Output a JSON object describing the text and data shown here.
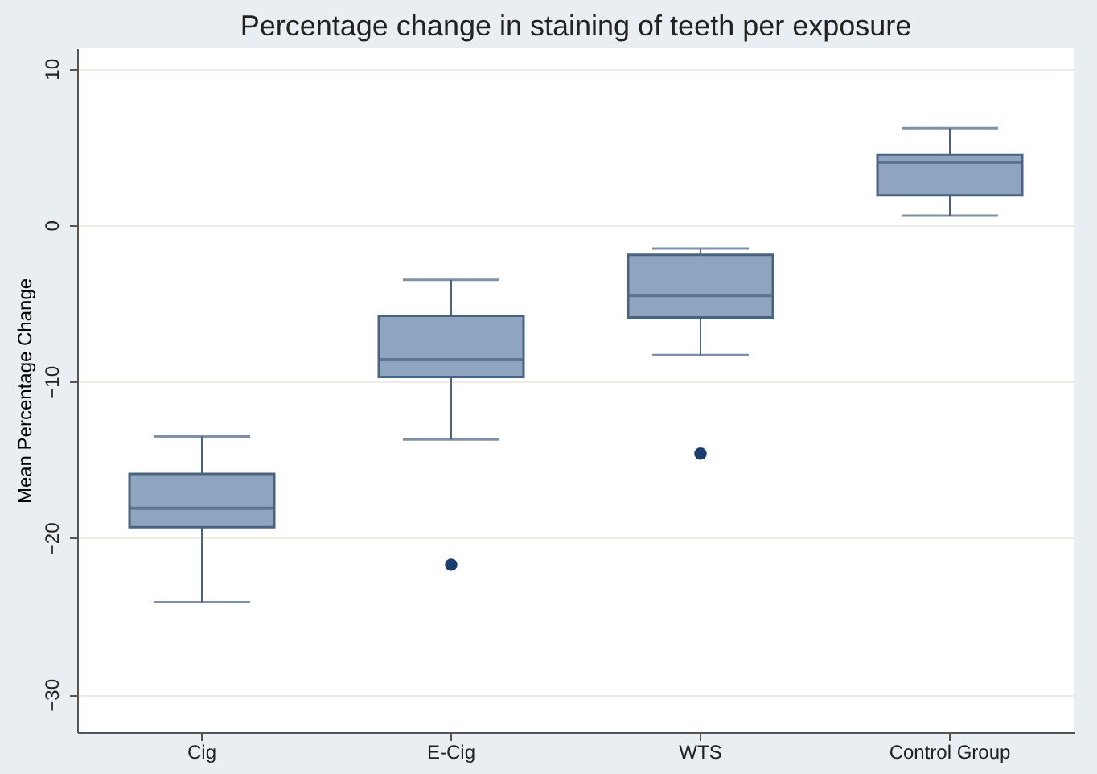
{
  "chart_data": {
    "type": "box",
    "title": "Percentage change in staining of teeth per exposure",
    "ylabel": "Mean Percentage Change",
    "categories": [
      "Cig",
      "E-Cig",
      "WTS",
      "Control Group"
    ],
    "boxes": [
      {
        "low": -24.1,
        "q1": -19.3,
        "median": -18.1,
        "q3": -15.9,
        "high": -13.5
      },
      {
        "low": -13.7,
        "q1": -9.7,
        "median": -8.6,
        "q3": -5.8,
        "high": -3.5,
        "outliers": [
          -21.7
        ]
      },
      {
        "low": -8.3,
        "q1": -5.9,
        "median": -4.5,
        "q3": -1.9,
        "high": -1.5,
        "outliers": [
          -14.6
        ]
      },
      {
        "low": 0.6,
        "q1": 1.9,
        "median": 4.0,
        "q3": 4.5,
        "high": 6.2
      }
    ],
    "color": "#8fa4bf",
    "ylim": [
      -32.4,
      11.3
    ],
    "yticks": [
      -30,
      -20,
      -10,
      0,
      10
    ],
    "grid": "y"
  }
}
